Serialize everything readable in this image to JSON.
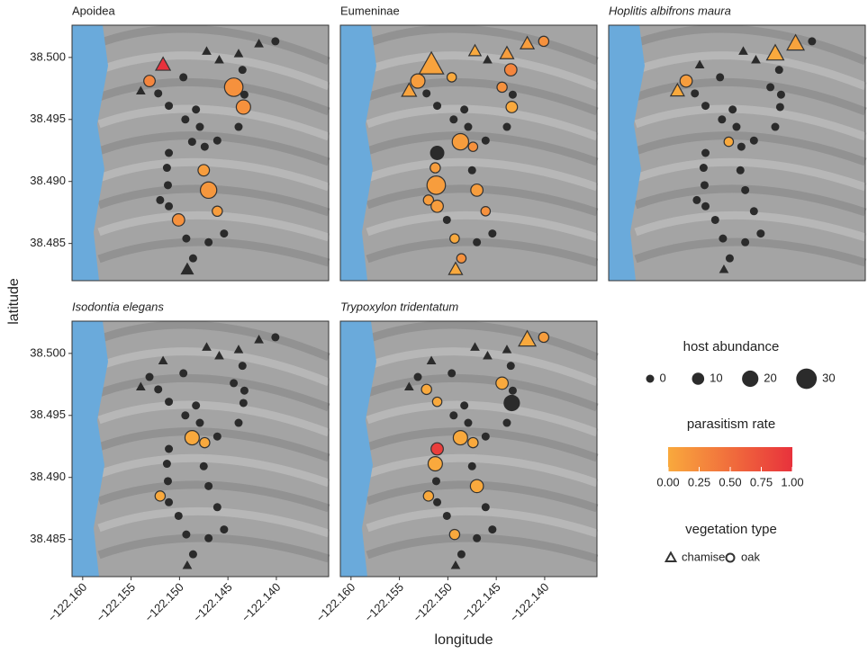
{
  "chart_data": {
    "type": "scatter",
    "x_label": "longitude",
    "y_label": "latitude",
    "xlim": [
      -122.1611,
      -122.1346
    ],
    "ylim": [
      38.482,
      38.5026
    ],
    "xticks": [
      {
        "value": -122.16,
        "label": "−122.160"
      },
      {
        "value": -122.155,
        "label": "−122.155"
      },
      {
        "value": -122.15,
        "label": "−122.150"
      },
      {
        "value": -122.145,
        "label": "−122.145"
      },
      {
        "value": -122.14,
        "label": "−122.140"
      }
    ],
    "yticks": [
      38.485,
      {
        "value": 38.49,
        "label": "38.490"
      },
      38.495,
      {
        "value": 38.5,
        "label": "38.500"
      }
    ],
    "x": [
      -122.1472,
      -122.1459,
      -122.1439,
      -122.1418,
      -122.1401,
      -122.1517,
      -122.154,
      -122.1492,
      -122.1531,
      -122.1522,
      -122.1496,
      -122.1511,
      -122.1494,
      -122.1483,
      -122.1479,
      -122.1487,
      -122.1474,
      -122.1461,
      -122.1435,
      -122.1444,
      -122.1433,
      -122.1434,
      -122.1439,
      -122.1511,
      -122.1513,
      -122.1475,
      -122.1512,
      -122.147,
      -122.152,
      -122.1511,
      -122.1461,
      -122.1501,
      -122.1493,
      -122.147,
      -122.1454,
      -122.1486
    ],
    "y": [
      38.5005,
      38.4998,
      38.5003,
      38.5011,
      38.5013,
      38.4994,
      38.4973,
      38.4829,
      38.4981,
      38.4971,
      38.4984,
      38.4961,
      38.495,
      38.4958,
      38.4944,
      38.4932,
      38.4928,
      38.4933,
      38.499,
      38.4976,
      38.497,
      38.496,
      38.4944,
      38.4923,
      38.4911,
      38.4909,
      38.4897,
      38.4893,
      38.4885,
      38.488,
      38.4876,
      38.4869,
      38.4854,
      38.4851,
      38.4858,
      38.4838
    ],
    "vegetation": [
      "chamise",
      "chamise",
      "chamise",
      "chamise",
      "oak",
      "chamise",
      "chamise",
      "chamise",
      "oak",
      "oak",
      "oak",
      "oak",
      "oak",
      "oak",
      "oak",
      "oak",
      "oak",
      "oak",
      "oak",
      "oak",
      "oak",
      "oak",
      "oak",
      "oak",
      "oak",
      "oak",
      "oak",
      "oak",
      "oak",
      "oak",
      "oak",
      "oak",
      "oak",
      "oak",
      "oak",
      "oak"
    ],
    "panels": [
      {
        "title": "Apoidea",
        "italic": false,
        "size": [
          0,
          0,
          0,
          0,
          0,
          10,
          0,
          8,
          8,
          0,
          0,
          0,
          0,
          0,
          0,
          0,
          0,
          0,
          0,
          25,
          0,
          15,
          0,
          0,
          0,
          8,
          0,
          20,
          0,
          0,
          5,
          10,
          0,
          0,
          0,
          0
        ],
        "rate": [
          null,
          null,
          null,
          null,
          null,
          1,
          null,
          null,
          0.3,
          null,
          null,
          null,
          null,
          null,
          null,
          null,
          null,
          null,
          null,
          0.2,
          null,
          0.2,
          null,
          null,
          null,
          0.1,
          null,
          0.15,
          null,
          null,
          0.1,
          0.2,
          null,
          null,
          null,
          null
        ]
      },
      {
        "title": "Eumeninae",
        "italic": false,
        "size": [
          5,
          0,
          8,
          8,
          5,
          30,
          10,
          8,
          15,
          0,
          3,
          0,
          0,
          0,
          0,
          20,
          3,
          0,
          10,
          5,
          0,
          8,
          0,
          15,
          5,
          0,
          25,
          10,
          5,
          10,
          3,
          0,
          3,
          0,
          0,
          3
        ],
        "rate": [
          0,
          null,
          0.1,
          0.1,
          0.2,
          0.05,
          0.05,
          0,
          0.1,
          null,
          0,
          null,
          null,
          null,
          null,
          0.1,
          0.2,
          null,
          0.3,
          0.2,
          null,
          0,
          null,
          null,
          0.1,
          null,
          0.1,
          0.1,
          0.1,
          0.1,
          0.2,
          null,
          0,
          null,
          null,
          0.2
        ]
      },
      {
        "title": "Hoplitis albifrons maura",
        "italic": true,
        "size": [
          0,
          0,
          15,
          15,
          0,
          0,
          8,
          0,
          10,
          0,
          0,
          0,
          0,
          0,
          0,
          3,
          0,
          0,
          0,
          0,
          0,
          0,
          0,
          0,
          0,
          0,
          0,
          0,
          0,
          0,
          0,
          0,
          0,
          0,
          0,
          0
        ],
        "rate": [
          null,
          null,
          0,
          0.05,
          null,
          null,
          0,
          null,
          0.1,
          null,
          null,
          null,
          null,
          null,
          null,
          0,
          null,
          null,
          null,
          null,
          null,
          null,
          null,
          null,
          null,
          null,
          null,
          null,
          null,
          null,
          null,
          null,
          null,
          null,
          null,
          null
        ]
      },
      {
        "title": "Isodontia elegans",
        "italic": true,
        "size": [
          0,
          0,
          0,
          0,
          0,
          0,
          0,
          0,
          0,
          0,
          0,
          0,
          0,
          0,
          0,
          15,
          5,
          0,
          0,
          0,
          0,
          0,
          0,
          0,
          0,
          0,
          0,
          0,
          5,
          0,
          0,
          0,
          0,
          0,
          0,
          0
        ],
        "rate": [
          null,
          null,
          null,
          null,
          null,
          null,
          null,
          null,
          null,
          null,
          null,
          null,
          null,
          null,
          null,
          0,
          0,
          null,
          null,
          null,
          null,
          null,
          null,
          null,
          null,
          null,
          null,
          null,
          0,
          null,
          null,
          null,
          null,
          null,
          null,
          null
        ]
      },
      {
        "title": "Trypoxylon tridentatum",
        "italic": true,
        "size": [
          0,
          0,
          0,
          15,
          5,
          0,
          0,
          0,
          0,
          5,
          0,
          3,
          0,
          0,
          0,
          15,
          5,
          0,
          0,
          10,
          0,
          20,
          0,
          10,
          15,
          0,
          0,
          12,
          5,
          0,
          0,
          0,
          5,
          0,
          0,
          0
        ],
        "rate": [
          null,
          null,
          null,
          0,
          0.1,
          null,
          null,
          null,
          null,
          0,
          null,
          0,
          null,
          null,
          null,
          0,
          0,
          null,
          null,
          0,
          null,
          null,
          null,
          0.9,
          0,
          null,
          null,
          0,
          0,
          null,
          null,
          null,
          0,
          null,
          null,
          null
        ]
      }
    ],
    "size_legend": {
      "title": "host abundance",
      "values": [
        0,
        10,
        20,
        30
      ]
    },
    "color_legend": {
      "title": "parasitism rate",
      "low_color": "#f9a93d",
      "high_color": "#e8323c",
      "ticks": [
        {
          "value": 0,
          "label": "0.00"
        },
        {
          "value": 0.25,
          "label": "0.25"
        },
        {
          "value": 0.5,
          "label": "0.50"
        },
        {
          "value": 0.75,
          "label": "0.75"
        },
        {
          "value": 1,
          "label": "1.00"
        }
      ]
    },
    "shape_legend": {
      "title": "vegetation type",
      "labels": [
        "chamise",
        "oak"
      ]
    },
    "base_color": "#2b2b2b"
  }
}
